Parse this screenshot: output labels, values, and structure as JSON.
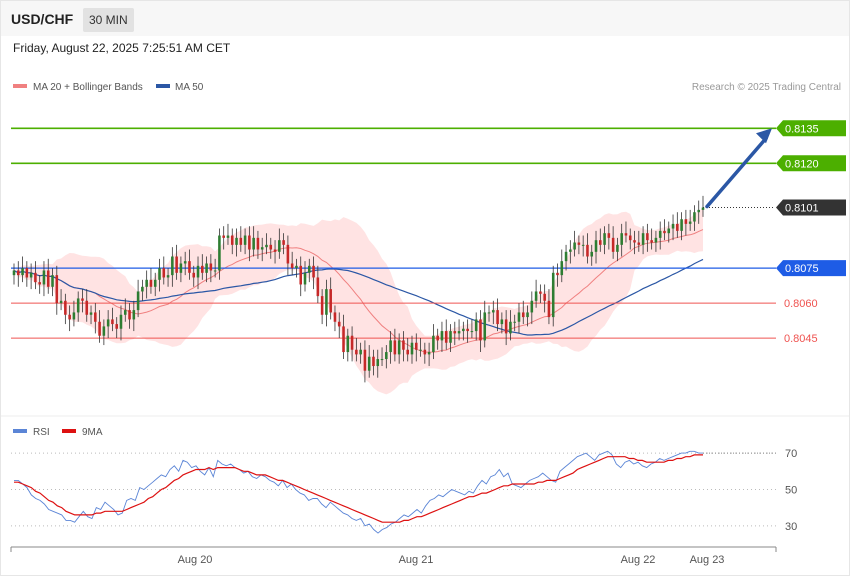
{
  "header": {
    "symbol": "USD/CHF",
    "timeframe": "30 MIN",
    "datetime": "Friday, August 22, 2025 7:25:51 AM CET"
  },
  "legend": {
    "ma20_label": "MA 20 + Bollinger Bands",
    "ma50_label": "MA 50",
    "credit": "Research © 2025 Trading Central"
  },
  "rsi_legend": {
    "rsi_label": "RSI",
    "ma_label": "9MA"
  },
  "colors": {
    "up": "#2e7d32",
    "down": "#c62828",
    "resistance": "#4caf00",
    "support": "#ef5350",
    "pivot": "#1e5ce6",
    "last": "#333333",
    "ma50": "#2b57a5",
    "ma20": "#f08080",
    "band_fill": "#ffdada",
    "rsi": "#5b85d6",
    "rsi_ma": "#dd1111"
  },
  "chart_data": [
    {
      "type": "candlestick",
      "x_labels": [
        "Aug 20",
        "Aug 21",
        "Aug 22",
        "Aug 23"
      ],
      "ylim": [
        0.8015,
        0.8148
      ],
      "levels": [
        {
          "value": 0.8135,
          "label": "0.8135",
          "kind": "resistance"
        },
        {
          "value": 0.812,
          "label": "0.8120",
          "kind": "resistance"
        },
        {
          "value": 0.8101,
          "label": "0.8101",
          "kind": "last"
        },
        {
          "value": 0.8075,
          "label": "0.8075",
          "kind": "pivot"
        },
        {
          "value": 0.806,
          "label": "0.8060",
          "kind": "support"
        },
        {
          "value": 0.8045,
          "label": "0.8045",
          "kind": "support"
        }
      ],
      "close": [
        0.8074,
        0.8072,
        0.8075,
        0.8071,
        0.8073,
        0.8069,
        0.8068,
        0.8074,
        0.8067,
        0.8072,
        0.806,
        0.8061,
        0.8055,
        0.8053,
        0.8056,
        0.8062,
        0.8061,
        0.8055,
        0.8056,
        0.8052,
        0.8046,
        0.805,
        0.8053,
        0.8051,
        0.8049,
        0.8055,
        0.8057,
        0.8053,
        0.8057,
        0.8065,
        0.8067,
        0.807,
        0.8067,
        0.807,
        0.8075,
        0.8071,
        0.8072,
        0.808,
        0.8073,
        0.8077,
        0.8078,
        0.8073,
        0.8071,
        0.8076,
        0.8073,
        0.8077,
        0.8074,
        0.8074,
        0.8089,
        0.8088,
        0.8089,
        0.8085,
        0.8088,
        0.8085,
        0.8089,
        0.8083,
        0.8088,
        0.8083,
        0.8084,
        0.8085,
        0.8083,
        0.8082,
        0.8087,
        0.8085,
        0.8077,
        0.8075,
        0.8076,
        0.8068,
        0.8073,
        0.8076,
        0.8071,
        0.8063,
        0.8055,
        0.8066,
        0.8056,
        0.8052,
        0.805,
        0.8039,
        0.8046,
        0.804,
        0.8038,
        0.804,
        0.8031,
        0.8037,
        0.8033,
        0.8036,
        0.8036,
        0.8039,
        0.8044,
        0.8038,
        0.8044,
        0.804,
        0.8038,
        0.8043,
        0.804,
        0.804,
        0.8038,
        0.8039,
        0.8046,
        0.8044,
        0.8048,
        0.8043,
        0.8048,
        0.8047,
        0.8048,
        0.8049,
        0.8048,
        0.8048,
        0.8053,
        0.8044,
        0.8056,
        0.8056,
        0.8057,
        0.8051,
        0.8053,
        0.8047,
        0.8052,
        0.8052,
        0.8056,
        0.8054,
        0.8056,
        0.8061,
        0.8065,
        0.8064,
        0.8061,
        0.8054,
        0.8073,
        0.8072,
        0.8078,
        0.8082,
        0.8083,
        0.8086,
        0.8085,
        0.8085,
        0.808,
        0.8082,
        0.8087,
        0.8085,
        0.809,
        0.8088,
        0.8082,
        0.8085,
        0.809,
        0.8089,
        0.8087,
        0.8086,
        0.8085,
        0.809,
        0.8087,
        0.8086,
        0.8088,
        0.8091,
        0.809,
        0.8092,
        0.8094,
        0.8091,
        0.8096,
        0.8094,
        0.8095,
        0.8099,
        0.81,
        0.8101
      ]
    },
    {
      "type": "line",
      "name": "RSI",
      "x_labels": [
        "Aug 20",
        "Aug 21",
        "Aug 22",
        "Aug 23"
      ],
      "yticks": [
        70,
        50,
        30
      ],
      "ylim": [
        20,
        75
      ],
      "series": [
        {
          "name": "RSI",
          "values": [
            55,
            55,
            53,
            51,
            47,
            45,
            44,
            42,
            39,
            38,
            37,
            36,
            33,
            33,
            32,
            35,
            38,
            35,
            34,
            40,
            39,
            43,
            41,
            39,
            36,
            37,
            44,
            45,
            44,
            51,
            50,
            52,
            54,
            56,
            58,
            57,
            61,
            63,
            60,
            66,
            65,
            62,
            63,
            60,
            58,
            62,
            57,
            66,
            64,
            63,
            64,
            62,
            61,
            59,
            60,
            57,
            56,
            58,
            57,
            55,
            54,
            52,
            55,
            51,
            53,
            50,
            48,
            47,
            44,
            45,
            45,
            42,
            40,
            43,
            41,
            39,
            37,
            36,
            34,
            33,
            34,
            30,
            31,
            28,
            26,
            28,
            29,
            31,
            32,
            34,
            36,
            35,
            37,
            39,
            37,
            41,
            44,
            45,
            47,
            46,
            48,
            50,
            49,
            48,
            47,
            49,
            48,
            52,
            55,
            53,
            57,
            58,
            61,
            57,
            59,
            53,
            52,
            51,
            53,
            55,
            56,
            57,
            59,
            57,
            55,
            54,
            60,
            62,
            64,
            66,
            68,
            69,
            70,
            68,
            66,
            69,
            70,
            71,
            69,
            64,
            62,
            65,
            66,
            64,
            65,
            63,
            62,
            64,
            65,
            67,
            66,
            67,
            68,
            69,
            70,
            70,
            71,
            71,
            70,
            70
          ]
        },
        {
          "name": "9MA",
          "values": [
            54,
            54,
            53,
            52,
            51,
            49,
            48,
            46,
            44,
            43,
            41,
            40,
            38,
            37,
            36,
            36,
            36,
            36,
            36,
            37,
            37,
            38,
            38,
            38,
            38,
            38,
            39,
            40,
            41,
            42,
            43,
            45,
            46,
            48,
            50,
            51,
            53,
            55,
            56,
            58,
            59,
            60,
            61,
            61,
            61,
            62,
            61,
            62,
            62,
            62,
            62,
            62,
            61,
            60,
            60,
            59,
            58,
            58,
            58,
            57,
            56,
            55,
            55,
            54,
            53,
            52,
            51,
            50,
            49,
            48,
            47,
            46,
            45,
            44,
            43,
            42,
            41,
            40,
            39,
            38,
            37,
            36,
            35,
            34,
            33,
            32,
            32,
            32,
            32,
            32,
            33,
            33,
            34,
            35,
            35,
            36,
            37,
            38,
            39,
            40,
            41,
            42,
            43,
            44,
            45,
            46,
            46,
            47,
            48,
            48,
            49,
            50,
            51,
            52,
            52,
            53,
            53,
            53,
            53,
            53,
            53,
            54,
            54,
            55,
            55,
            55,
            56,
            57,
            58,
            59,
            61,
            62,
            63,
            64,
            65,
            66,
            67,
            68,
            68,
            68,
            68,
            68,
            67,
            67,
            66,
            66,
            65,
            65,
            65,
            65,
            65,
            66,
            66,
            67,
            67,
            68,
            68,
            69,
            69,
            69
          ]
        }
      ]
    }
  ]
}
